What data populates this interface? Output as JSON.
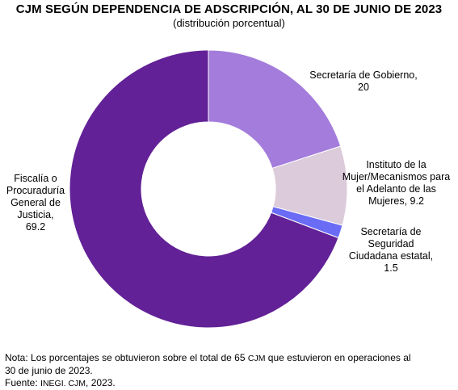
{
  "chart_data": {
    "type": "pie",
    "donut": true,
    "title": "CJM SEGÚN DEPENDENCIA DE ADSCRIPCIÓN, AL 30 DE JUNIO DE 2023",
    "subtitle": "(distribución porcentual)",
    "legend": "none",
    "slices": [
      {
        "name": "Secretaría de Gobierno,",
        "value": 20,
        "value_label": "20",
        "color": "#a37cdc"
      },
      {
        "name": "Instituto de la Mujer/Mecanismos para el Adelanto de las Mujeres,",
        "value": 9.2,
        "value_label": "9.2",
        "color": "#dccbdb"
      },
      {
        "name": "Secretaría de Seguridad Ciudadana estatal,",
        "value": 1.5,
        "value_label": "1.5",
        "color": "#6a6cf6"
      },
      {
        "name": "Fiscalía o Procuraduría General de Justicia,",
        "value": 69.2,
        "value_label": "69.2",
        "color": "#622196"
      }
    ]
  },
  "labels": {
    "gobierno": [
      "Secretaría de Gobierno,",
      "20"
    ],
    "instituto": [
      "Instituto de la",
      "Mujer/Mecanismos para",
      "el Adelanto de las",
      "Mujeres, 9.2"
    ],
    "seguridad": [
      "Secretaría de",
      "Seguridad",
      "Ciudadana estatal,",
      "1.5"
    ],
    "fiscalia": [
      "Fiscalía o",
      "Procuraduría",
      "General de",
      "Justicia,",
      "69.2"
    ]
  },
  "notes": {
    "line1_a": "Nota: Los porcentajes se obtuvieron sobre el total de 65 ",
    "line1_sc": "CJM",
    "line1_b": " que estuvieron en operaciones al",
    "line2": "30 de junio de 2023.",
    "source_a": "Fuente: ",
    "source_sc": "INEGI. CJM",
    "source_b": ", 2023."
  }
}
